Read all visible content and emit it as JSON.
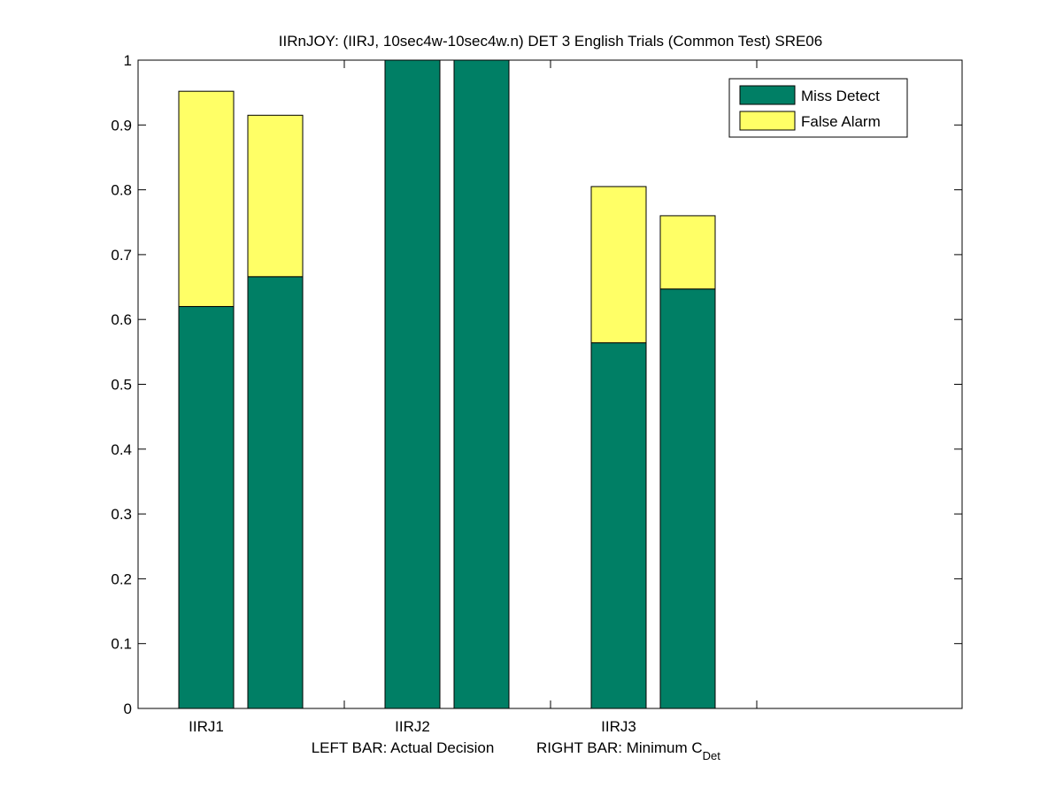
{
  "chart_data": {
    "type": "bar",
    "stacked": true,
    "title": "IIRnJOY: (IIRJ, 10sec4w-10sec4w.n) DET 3 English Trials (Common Test) SRE06",
    "xlabel": {
      "left": "LEFT BAR: Actual Decision",
      "right": "RIGHT BAR: Minimum C",
      "right_subscript": "Det"
    },
    "categories": [
      "IIRJ1",
      "IIRJ2",
      "IIRJ3"
    ],
    "bar_labels": [
      "Actual Decision",
      "Minimum C_Det"
    ],
    "series": [
      {
        "name": "Miss Detect",
        "color": "#007f65",
        "values": [
          [
            0.62,
            0.666
          ],
          [
            1.0,
            1.0
          ],
          [
            0.564,
            0.647
          ]
        ]
      },
      {
        "name": "False Alarm",
        "color": "#ffff66",
        "values": [
          [
            0.332,
            0.249
          ],
          [
            0.0,
            0.0
          ],
          [
            0.241,
            0.113
          ]
        ]
      }
    ],
    "ylim": [
      0,
      1
    ],
    "yticks": [
      "0",
      "0.1",
      "0.2",
      "0.3",
      "0.4",
      "0.5",
      "0.6",
      "0.7",
      "0.8",
      "0.9",
      "1"
    ],
    "grid": false,
    "legend_position": "top-right"
  }
}
